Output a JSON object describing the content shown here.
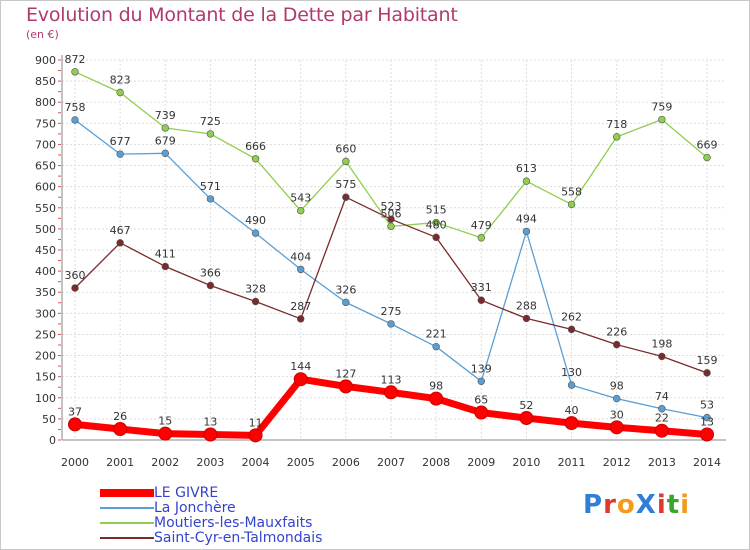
{
  "title": "Evolution du Montant de la Dette par Habitant",
  "unit": "(en €)",
  "logo": {
    "text": "ProXiti",
    "colors": [
      "#2f7fd6",
      "#e2382f",
      "#f29b1c",
      "#2f7fd6",
      "#e2382f",
      "#3aa62f",
      "#f29b1c"
    ]
  },
  "chart_data": {
    "type": "line",
    "x": [
      "2000",
      "2001",
      "2002",
      "2003",
      "2004",
      "2005",
      "2006",
      "2007",
      "2008",
      "2009",
      "2010",
      "2011",
      "2012",
      "2013",
      "2014"
    ],
    "ylim": [
      0,
      900
    ],
    "yticks": [
      0,
      50,
      100,
      150,
      200,
      250,
      300,
      350,
      400,
      450,
      500,
      550,
      600,
      650,
      700,
      750,
      800,
      850,
      900
    ],
    "grid": true,
    "legend_position": "bottom-left",
    "series": [
      {
        "name": "Moutiers-les-Mauxfaits",
        "color": "#8fce4e",
        "values": [
          872,
          823,
          739,
          725,
          666,
          543,
          660,
          506,
          515,
          479,
          613,
          558,
          718,
          759,
          669
        ],
        "labels": [
          "872",
          "823",
          "739",
          "725",
          "666",
          "543",
          "660",
          "506",
          "515",
          "479",
          "613",
          "558",
          "718",
          "759",
          "669"
        ]
      },
      {
        "name": "La Jonchère",
        "color": "#5a9fd4",
        "values": [
          758,
          677,
          679,
          571,
          490,
          404,
          326,
          275,
          221,
          139,
          494,
          130,
          98,
          74,
          53
        ],
        "labels": [
          "758",
          "677",
          "679",
          "571",
          "490",
          "404",
          "326",
          "275",
          "221",
          "139",
          "494",
          "130",
          "98",
          "74",
          "53"
        ]
      },
      {
        "name": "Saint-Cyr-en-Talmondais",
        "color": "#7a2a2a",
        "values": [
          360,
          467,
          411,
          366,
          328,
          287,
          575,
          523,
          480,
          331,
          288,
          262,
          226,
          198,
          159
        ],
        "labels": [
          "360",
          "467",
          "411",
          "366",
          "328",
          "287",
          "575",
          "523",
          "480",
          "331",
          "288",
          "262",
          "226",
          "198",
          "159"
        ]
      },
      {
        "name": "LE GIVRE",
        "color": "#ff0000",
        "values": [
          37,
          26,
          15,
          13,
          11,
          144,
          127,
          113,
          98,
          65,
          52,
          40,
          30,
          22,
          13
        ],
        "labels": [
          "37",
          "26",
          "15",
          "13",
          "11",
          "144",
          "127",
          "113",
          "98",
          "65",
          "52",
          "40",
          "30",
          "22",
          "13"
        ]
      }
    ]
  },
  "legend": [
    {
      "name": "LE GIVRE",
      "color": "#ff0000",
      "thick": true
    },
    {
      "name": "La Jonchère",
      "color": "#5a9fd4",
      "thick": false
    },
    {
      "name": "Moutiers-les-Mauxfaits",
      "color": "#8fce4e",
      "thick": false
    },
    {
      "name": "Saint-Cyr-en-Talmondais",
      "color": "#7a2a2a",
      "thick": false
    }
  ]
}
